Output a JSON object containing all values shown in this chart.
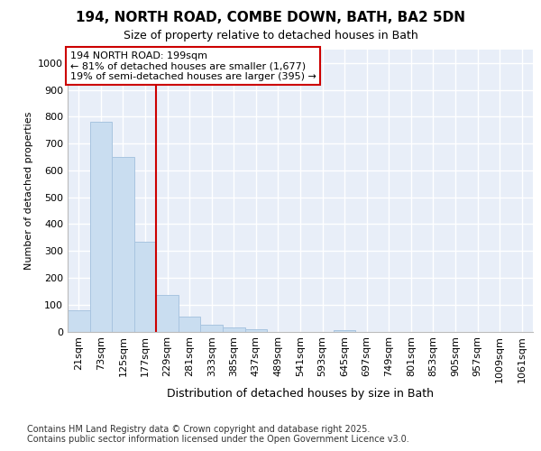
{
  "title_line1": "194, NORTH ROAD, COMBE DOWN, BATH, BA2 5DN",
  "title_line2": "Size of property relative to detached houses in Bath",
  "xlabel": "Distribution of detached houses by size in Bath",
  "ylabel": "Number of detached properties",
  "annotation_line1": "194 NORTH ROAD: 199sqm",
  "annotation_line2": "← 81% of detached houses are smaller (1,677)",
  "annotation_line3": "19% of semi-detached houses are larger (395) →",
  "bar_face_color": "#c9ddf0",
  "bar_edge_color": "#a8c4e0",
  "vline_color": "#cc0000",
  "background_color": "#e8eef8",
  "grid_color": "#ffffff",
  "categories": [
    "21sqm",
    "73sqm",
    "125sqm",
    "177sqm",
    "229sqm",
    "281sqm",
    "333sqm",
    "385sqm",
    "437sqm",
    "489sqm",
    "541sqm",
    "593sqm",
    "645sqm",
    "697sqm",
    "749sqm",
    "801sqm",
    "853sqm",
    "905sqm",
    "957sqm",
    "1009sqm",
    "1061sqm"
  ],
  "values": [
    80,
    780,
    650,
    335,
    135,
    55,
    25,
    15,
    10,
    0,
    0,
    0,
    5,
    0,
    0,
    0,
    0,
    0,
    0,
    0,
    0
  ],
  "ylim": [
    0,
    1050
  ],
  "yticks": [
    0,
    100,
    200,
    300,
    400,
    500,
    600,
    700,
    800,
    900,
    1000
  ],
  "vline_x_index": 3.5,
  "footer_line1": "Contains HM Land Registry data © Crown copyright and database right 2025.",
  "footer_line2": "Contains public sector information licensed under the Open Government Licence v3.0.",
  "title_fontsize": 11,
  "subtitle_fontsize": 9,
  "ylabel_fontsize": 8,
  "xlabel_fontsize": 9,
  "tick_fontsize": 8,
  "xtick_fontsize": 8,
  "footer_fontsize": 7,
  "annot_fontsize": 8
}
